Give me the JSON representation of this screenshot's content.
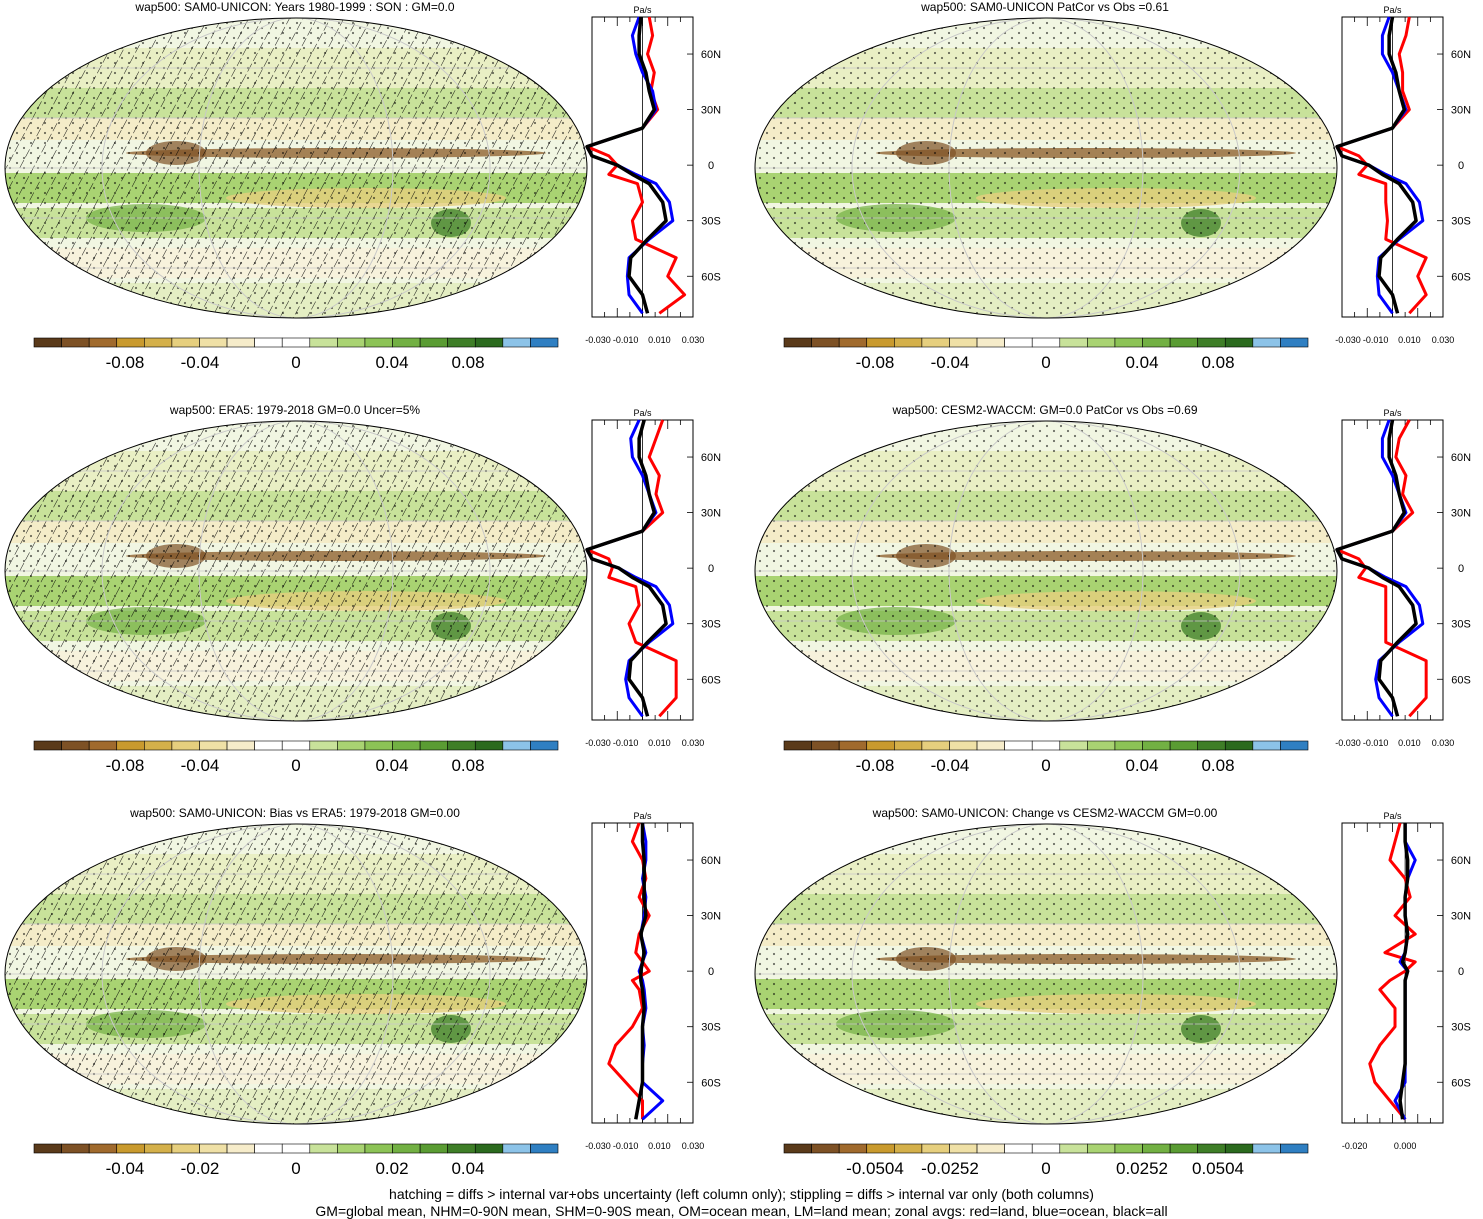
{
  "footer": {
    "line1": "hatching = diffs > internal var+obs uncertainty (left column only); stippling = diffs > internal var only (both columns)",
    "line2": "GM=global mean, NHM=0-90N mean, SHM=0-90S mean, OM=ocean mean, LM=land mean; zonal avgs: red=land, blue=ocean, black=all"
  },
  "colors": {
    "land_line": "#ff0000",
    "ocean_line": "#0000ff",
    "all_line": "#000000",
    "colorbar": [
      "#5a3a1a",
      "#7d5125",
      "#a06a2d",
      "#c99a2e",
      "#d4b04a",
      "#e6cf7e",
      "#efe0a6",
      "#f6ecca",
      "#ffffff",
      "#ffffff",
      "#c8e29a",
      "#a9d372",
      "#8cc356",
      "#72b043",
      "#5a9c33",
      "#3e7e27",
      "#2b6a1e",
      "#8cc3e8",
      "#2f7fc2"
    ]
  },
  "chart_data": [
    {
      "id": "p1",
      "type": "heatmap",
      "title": "wap500: SAM0-UNICON: Years 1980-1999 : SON : GM=0.0",
      "hatching": true,
      "colorbar_labels": [
        "-0.08",
        "-0.04",
        "0",
        "0.04",
        "0.08"
      ],
      "zonal": {
        "unit": "Pa/s",
        "xticks": [
          "-0.030",
          "-0.010",
          "0.010",
          "0.030"
        ],
        "xrange": [
          -0.03,
          0.03
        ],
        "yticks": [
          "60N",
          "30N",
          "0",
          "30S",
          "60S"
        ],
        "lat": [
          80,
          70,
          60,
          50,
          40,
          30,
          20,
          10,
          5,
          0,
          -5,
          -10,
          -20,
          -30,
          -40,
          -50,
          -60,
          -70,
          -80
        ],
        "land": [
          0.004,
          0.006,
          0.003,
          0.007,
          0.005,
          0.009,
          0.0,
          -0.045,
          -0.02,
          -0.015,
          -0.02,
          -0.003,
          0.0,
          -0.006,
          -0.004,
          0.02,
          0.015,
          0.025,
          0.01
        ],
        "ocean": [
          -0.002,
          -0.006,
          -0.004,
          0.0,
          0.006,
          0.008,
          0.0,
          -0.048,
          -0.03,
          -0.015,
          -0.004,
          0.008,
          0.016,
          0.018,
          0.004,
          -0.008,
          -0.009,
          -0.008,
          0.0
        ],
        "all": [
          -0.001,
          -0.002,
          -0.002,
          0.002,
          0.004,
          0.007,
          0.0,
          -0.045,
          -0.03,
          -0.015,
          -0.006,
          0.004,
          0.012,
          0.014,
          0.003,
          -0.007,
          -0.008,
          0.0,
          0.003
        ]
      }
    },
    {
      "id": "p2",
      "type": "heatmap",
      "title": "wap500: SAM0-UNICON PatCor vs Obs =0.61",
      "hatching": false,
      "colorbar_labels": [
        "-0.08",
        "-0.04",
        "0",
        "0.04",
        "0.08"
      ],
      "zonal": {
        "unit": "Pa/s",
        "xticks": [
          "-0.030",
          "-0.010",
          "0.010",
          "0.030"
        ],
        "xrange": [
          -0.03,
          0.03
        ],
        "yticks": [
          "60N",
          "30N",
          "0",
          "30S",
          "60S"
        ],
        "lat": [
          80,
          70,
          60,
          50,
          40,
          30,
          20,
          10,
          5,
          0,
          -5,
          -10,
          -20,
          -30,
          -40,
          -50,
          -60,
          -70,
          -80
        ],
        "land": [
          0.01,
          0.008,
          0.004,
          0.006,
          0.006,
          0.01,
          0.0,
          -0.045,
          -0.02,
          -0.015,
          -0.02,
          -0.004,
          -0.004,
          -0.003,
          -0.004,
          0.02,
          0.015,
          0.02,
          0.01
        ],
        "ocean": [
          -0.002,
          -0.006,
          -0.006,
          0.0,
          0.004,
          0.008,
          0.0,
          -0.048,
          -0.03,
          -0.014,
          -0.004,
          0.008,
          0.016,
          0.018,
          0.004,
          -0.008,
          -0.009,
          -0.008,
          0.0
        ],
        "all": [
          0.0,
          -0.002,
          -0.002,
          0.002,
          0.004,
          0.007,
          0.0,
          -0.045,
          -0.03,
          -0.014,
          -0.006,
          0.004,
          0.012,
          0.014,
          0.003,
          -0.007,
          -0.008,
          0.0,
          0.003
        ]
      }
    },
    {
      "id": "p3",
      "type": "heatmap",
      "title": "wap500: ERA5: 1979-2018 GM=0.0 Uncer=5%",
      "hatching": true,
      "colorbar_labels": [
        "-0.08",
        "-0.04",
        "0",
        "0.04",
        "0.08"
      ],
      "zonal": {
        "unit": "Pa/s",
        "xticks": [
          "-0.030",
          "-0.010",
          "0.010",
          "0.030"
        ],
        "xrange": [
          -0.03,
          0.03
        ],
        "yticks": [
          "60N",
          "30N",
          "0",
          "30S",
          "60S"
        ],
        "lat": [
          80,
          70,
          60,
          50,
          40,
          30,
          20,
          10,
          5,
          0,
          -5,
          -10,
          -20,
          -30,
          -40,
          -50,
          -60,
          -70,
          -80
        ],
        "land": [
          0.012,
          0.008,
          0.004,
          0.01,
          0.008,
          0.012,
          0.0,
          -0.045,
          -0.02,
          -0.018,
          -0.02,
          -0.004,
          -0.002,
          -0.008,
          -0.004,
          0.02,
          0.02,
          0.02,
          0.01
        ],
        "ocean": [
          -0.002,
          -0.007,
          -0.006,
          0.0,
          0.004,
          0.008,
          0.0,
          -0.048,
          -0.03,
          -0.014,
          -0.004,
          0.008,
          0.016,
          0.018,
          0.004,
          -0.008,
          -0.01,
          -0.008,
          0.0
        ],
        "all": [
          0.001,
          -0.002,
          -0.002,
          0.002,
          0.004,
          0.007,
          0.0,
          -0.045,
          -0.03,
          -0.014,
          -0.006,
          0.004,
          0.012,
          0.014,
          0.003,
          -0.007,
          -0.008,
          0.0,
          0.003
        ]
      }
    },
    {
      "id": "p4",
      "type": "heatmap",
      "title": "wap500: CESM2-WACCM: GM=0.0 PatCor vs Obs =0.69",
      "hatching": false,
      "colorbar_labels": [
        "-0.08",
        "-0.04",
        "0",
        "0.04",
        "0.08"
      ],
      "zonal": {
        "unit": "Pa/s",
        "xticks": [
          "-0.030",
          "-0.010",
          "0.010",
          "0.030"
        ],
        "xrange": [
          -0.03,
          0.03
        ],
        "yticks": [
          "60N",
          "30N",
          "0",
          "30S",
          "60S"
        ],
        "lat": [
          80,
          70,
          60,
          50,
          40,
          30,
          20,
          10,
          5,
          0,
          -5,
          -10,
          -20,
          -30,
          -40,
          -50,
          -60,
          -70,
          -80
        ],
        "land": [
          0.01,
          0.004,
          0.002,
          0.008,
          0.006,
          0.012,
          0.0,
          -0.045,
          -0.02,
          -0.016,
          -0.02,
          -0.004,
          -0.004,
          -0.004,
          -0.004,
          0.02,
          0.02,
          0.02,
          0.01
        ],
        "ocean": [
          -0.002,
          -0.006,
          -0.006,
          0.0,
          0.004,
          0.008,
          0.0,
          -0.048,
          -0.03,
          -0.014,
          -0.004,
          0.008,
          0.016,
          0.018,
          0.004,
          -0.008,
          -0.01,
          -0.008,
          0.0
        ],
        "all": [
          0.0,
          -0.002,
          -0.002,
          0.002,
          0.004,
          0.007,
          0.0,
          -0.045,
          -0.03,
          -0.014,
          -0.006,
          0.004,
          0.012,
          0.014,
          0.003,
          -0.007,
          -0.008,
          0.0,
          0.003
        ]
      }
    },
    {
      "id": "p5",
      "type": "heatmap",
      "title": "wap500: SAM0-UNICON: Bias vs ERA5: 1979-2018  GM=0.00",
      "hatching": true,
      "colorbar_labels": [
        "-0.04",
        "-0.02",
        "0",
        "0.02",
        "0.04"
      ],
      "zonal": {
        "unit": "Pa/s",
        "xticks": [
          "-0.030",
          "-0.010",
          "0.010",
          "0.030"
        ],
        "xrange": [
          -0.03,
          0.03
        ],
        "yticks": [
          "60N",
          "30N",
          "0",
          "30S",
          "60S"
        ],
        "lat": [
          80,
          70,
          60,
          50,
          40,
          30,
          20,
          10,
          5,
          0,
          -5,
          -10,
          -20,
          -30,
          -40,
          -50,
          -60,
          -70,
          -80
        ],
        "land": [
          -0.002,
          -0.006,
          0.0,
          0.002,
          -0.002,
          0.004,
          -0.002,
          -0.004,
          0.0,
          0.004,
          -0.006,
          -0.002,
          0.0,
          -0.006,
          -0.016,
          -0.02,
          -0.01,
          0.0,
          0.0
        ],
        "ocean": [
          0.0,
          0.002,
          0.002,
          0.0,
          0.002,
          0.001,
          -0.001,
          0.002,
          0.0,
          -0.002,
          0.0,
          0.001,
          0.002,
          0.0,
          0.001,
          0.0,
          0.0,
          0.012,
          0.0
        ],
        "all": [
          0.0,
          0.0,
          0.001,
          0.001,
          0.001,
          0.002,
          -0.001,
          0.001,
          0.0,
          -0.001,
          -0.001,
          0.0,
          0.001,
          0.0,
          0.0,
          0.0,
          0.0,
          -0.002,
          -0.004
        ]
      }
    },
    {
      "id": "p6",
      "type": "heatmap",
      "title": "wap500: SAM0-UNICON: Change vs CESM2-WACCM GM=0.00",
      "hatching": false,
      "colorbar_labels": [
        "-0.0504",
        "-0.0252",
        "0",
        "0.0252",
        "0.0504"
      ],
      "zonal": {
        "unit": "Pa/s",
        "xticks": [
          "-0.020",
          "0.000"
        ],
        "xrange": [
          -0.025,
          0.015
        ],
        "yticks": [
          "60N",
          "30N",
          "0",
          "30S",
          "60S"
        ],
        "lat": [
          80,
          70,
          60,
          50,
          40,
          30,
          20,
          10,
          5,
          0,
          -5,
          -10,
          -20,
          -30,
          -40,
          -50,
          -60,
          -70,
          -80
        ],
        "land": [
          -0.002,
          -0.004,
          -0.006,
          0.0,
          0.002,
          -0.004,
          0.004,
          -0.008,
          0.004,
          0.0,
          -0.006,
          -0.01,
          -0.004,
          -0.004,
          -0.01,
          -0.014,
          -0.012,
          -0.006,
          0.0
        ],
        "ocean": [
          0.0,
          0.0,
          0.004,
          0.001,
          0.0,
          0.0,
          0.001,
          0.0,
          -0.002,
          0.001,
          0.0,
          0.0,
          0.0,
          0.0,
          0.0,
          0.0,
          0.0,
          -0.004,
          0.0
        ],
        "all": [
          0.0,
          0.0,
          0.001,
          0.001,
          0.0,
          0.0,
          0.001,
          0.0,
          -0.001,
          0.001,
          0.0,
          0.0,
          0.0,
          0.0,
          0.0,
          0.0,
          -0.001,
          -0.002,
          -0.001
        ]
      }
    }
  ]
}
